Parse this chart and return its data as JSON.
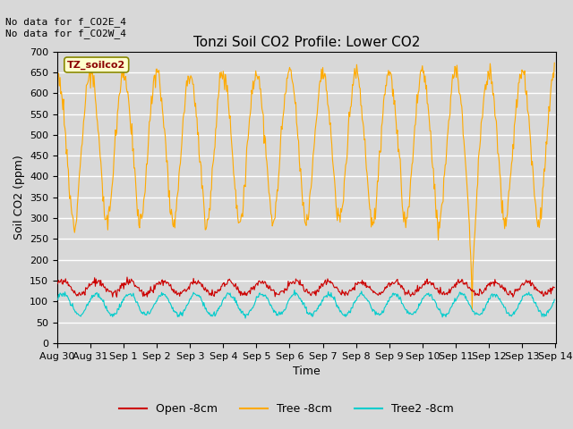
{
  "title": "Tonzi Soil CO2 Profile: Lower CO2",
  "xlabel": "Time",
  "ylabel": "Soil CO2 (ppm)",
  "ylim": [
    0,
    700
  ],
  "yticks": [
    0,
    50,
    100,
    150,
    200,
    250,
    300,
    350,
    400,
    450,
    500,
    550,
    600,
    650,
    700
  ],
  "fig_bg_color": "#d8d8d8",
  "plot_bg_color": "#d8d8d8",
  "annotation_top": "No data for f_CO2E_4\nNo data for f_CO2W_4",
  "legend_box_label": "TZ_soilco2",
  "legend_box_facecolor": "#ffffcc",
  "legend_box_edgecolor": "#888800",
  "line_open_color": "#cc0000",
  "line_tree_color": "#ffaa00",
  "line_tree2_color": "#00cccc",
  "legend_labels": [
    "Open -8cm",
    "Tree -8cm",
    "Tree2 -8cm"
  ],
  "n_days": 15,
  "n_per_day": 48,
  "tree_base": 490,
  "tree_amp": 160,
  "open_base": 133,
  "open_amp": 15,
  "tree2_base": 93,
  "tree2_amp": 25,
  "drop_day": 12,
  "drop_value": 80
}
